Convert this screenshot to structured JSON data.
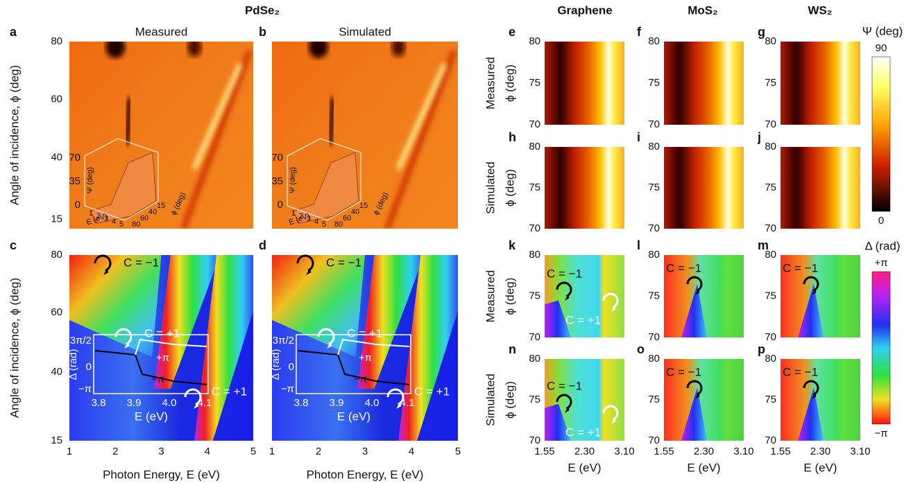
{
  "header": {
    "title": "PdSe₂",
    "columns": [
      "Graphene",
      "MoS₂",
      "WS₂"
    ]
  },
  "panel_labels": [
    "a",
    "b",
    "c",
    "d",
    "e",
    "f",
    "g",
    "h",
    "i",
    "j",
    "k",
    "l",
    "m",
    "n",
    "o",
    "p"
  ],
  "large": {
    "titles": [
      "Measured",
      "Simulated"
    ],
    "y_label": "Angle of incidence, ϕ (deg)",
    "y_ticks": [
      80,
      60,
      40,
      15
    ],
    "x_label": "Photon Energy, E (eV)",
    "x_ticks": [
      1,
      2,
      3,
      4,
      5
    ]
  },
  "small": {
    "row_labels": [
      "Measured",
      "Simulated",
      "Measured",
      "Simulated"
    ],
    "y_label": "ϕ (deg)",
    "y_ticks": [
      80,
      75,
      70
    ],
    "x_label": "E (eV)",
    "x_ticks": [
      "1.55",
      "2.30",
      "3.10"
    ]
  },
  "colorbars": [
    {
      "label": "Ψ (deg)",
      "top": "90",
      "bottom": "0"
    },
    {
      "label": "Δ (rad)",
      "top": "+π",
      "bottom": "−π"
    }
  ],
  "annotations": {
    "minus": "C = −1",
    "plus": "C = +1"
  },
  "inset_phase": {
    "y_label": "Δ (rad)",
    "y_ticks": [
      "3π/2",
      "0",
      "−π"
    ],
    "x_ticks": [
      "3.8",
      "3.9",
      "4.0",
      "4.1"
    ],
    "x_label": "E (eV)",
    "curve_labels": [
      "+π",
      "−π"
    ]
  },
  "inset_3d": {
    "z_label": "Ψ (deg)",
    "z_ticks": [
      70,
      35,
      0
    ],
    "x_label": "E (eV)",
    "x_ticks": [
      1,
      2,
      3,
      4,
      5
    ],
    "y_label": "ϕ (deg)",
    "y_ticks": [
      80,
      60,
      40,
      15
    ]
  }
}
